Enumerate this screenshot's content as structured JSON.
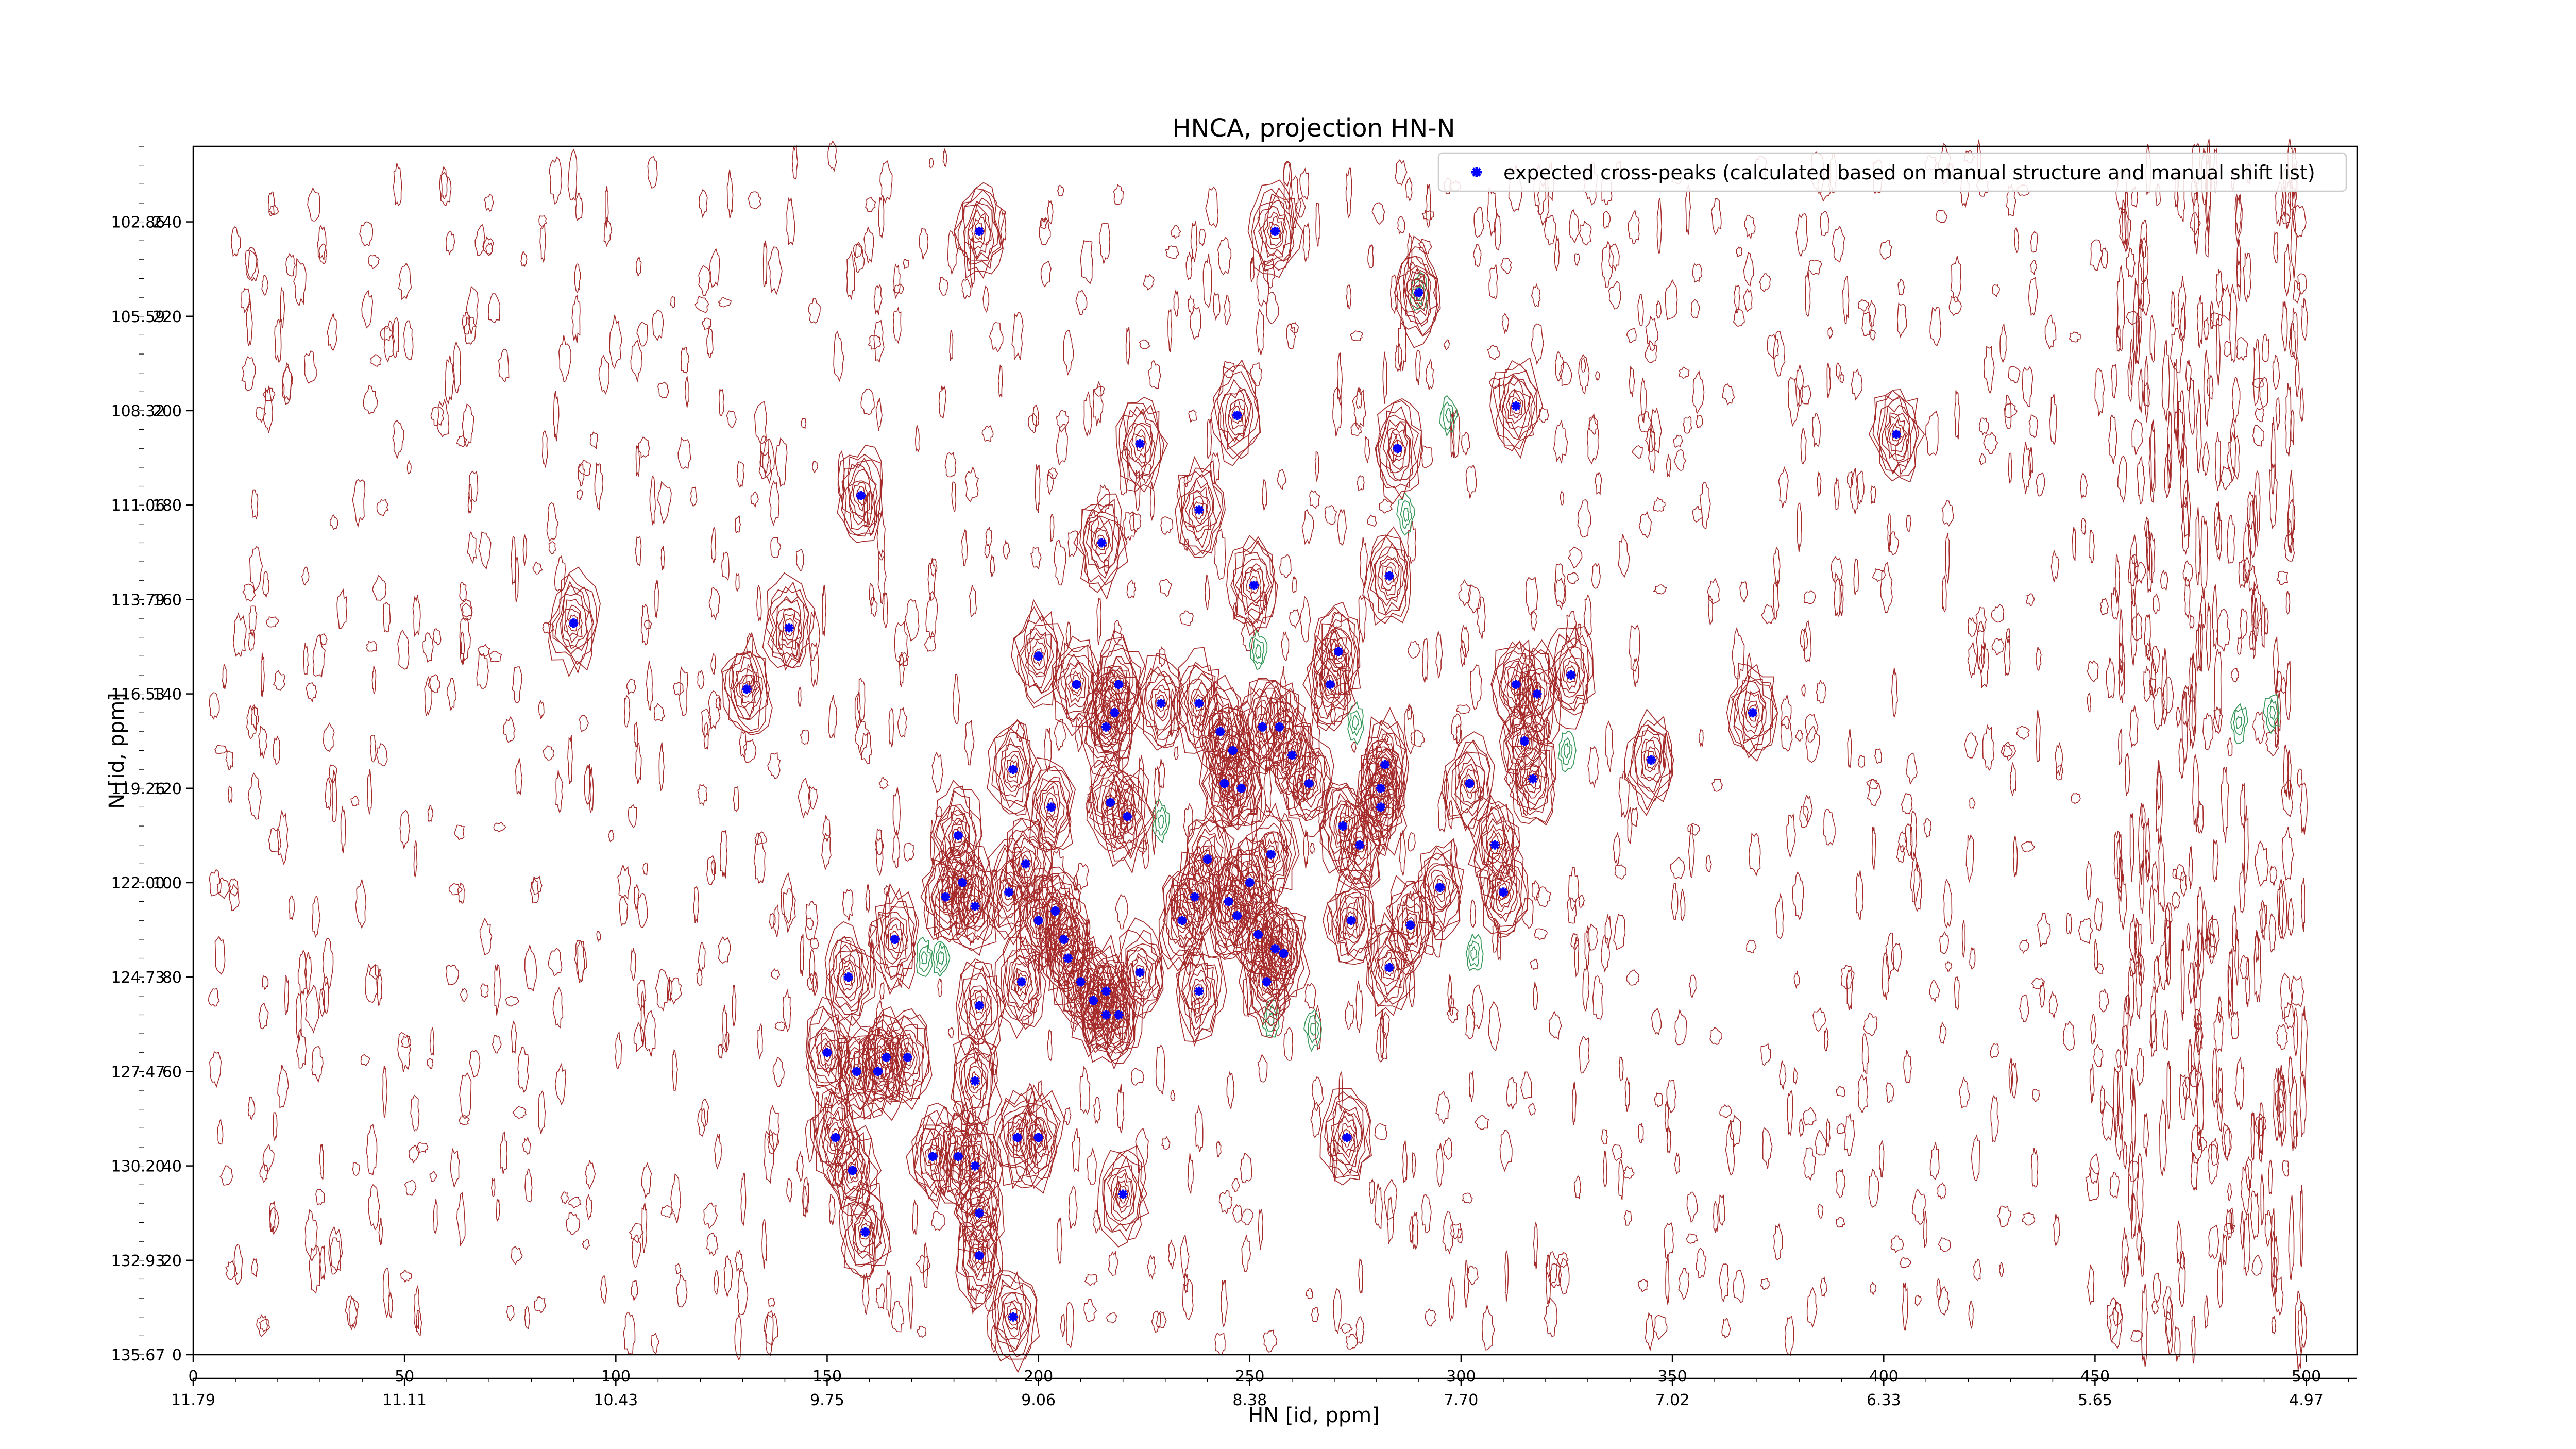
{
  "colors": {
    "positive_contour": "#a52a2a",
    "negative_contour": "#3a9a5b",
    "marker": "#0000ff",
    "axis": "#000000"
  },
  "chart_data": {
    "type": "scatter",
    "title": "HNCA, projection HN-N",
    "xlabel": "HN [id, ppm]",
    "ylabel": "N [id, ppm]",
    "xlim": [
      0,
      512
    ],
    "ylim": [
      0,
      256
    ],
    "grid": false,
    "legend": {
      "position": "top-right",
      "entries": [
        "expected cross-peaks (calculated based on manual structure and manual shift list)"
      ]
    },
    "x_ticks_index": [
      {
        "value": 0,
        "label": "0"
      },
      {
        "value": 50,
        "label": "50"
      },
      {
        "value": 100,
        "label": "100"
      },
      {
        "value": 150,
        "label": "150"
      },
      {
        "value": 200,
        "label": "200"
      },
      {
        "value": 250,
        "label": "250"
      },
      {
        "value": 300,
        "label": "300"
      },
      {
        "value": 350,
        "label": "350"
      },
      {
        "value": 400,
        "label": "400"
      },
      {
        "value": 450,
        "label": "450"
      },
      {
        "value": 500,
        "label": "500"
      }
    ],
    "x_ticks_ppm": [
      {
        "value": 0,
        "label": "11.79"
      },
      {
        "value": 50,
        "label": "11.11"
      },
      {
        "value": 100,
        "label": "10.43"
      },
      {
        "value": 150,
        "label": "9.75"
      },
      {
        "value": 200,
        "label": "9.06"
      },
      {
        "value": 250,
        "label": "8.38"
      },
      {
        "value": 300,
        "label": "7.70"
      },
      {
        "value": 350,
        "label": "7.02"
      },
      {
        "value": 400,
        "label": "6.33"
      },
      {
        "value": 450,
        "label": "5.65"
      },
      {
        "value": 500,
        "label": "4.97"
      }
    ],
    "y_ticks_index": [
      {
        "value": 0,
        "label": "0"
      },
      {
        "value": 20,
        "label": "20"
      },
      {
        "value": 40,
        "label": "40"
      },
      {
        "value": 60,
        "label": "60"
      },
      {
        "value": 80,
        "label": "80"
      },
      {
        "value": 100,
        "label": "100"
      },
      {
        "value": 120,
        "label": "120"
      },
      {
        "value": 140,
        "label": "140"
      },
      {
        "value": 160,
        "label": "160"
      },
      {
        "value": 180,
        "label": "180"
      },
      {
        "value": 200,
        "label": "200"
      },
      {
        "value": 220,
        "label": "220"
      },
      {
        "value": 240,
        "label": "240"
      }
    ],
    "y_ticks_ppm": [
      {
        "value": 0,
        "label": "135.67"
      },
      {
        "value": 20,
        "label": "132.93"
      },
      {
        "value": 40,
        "label": "130.20"
      },
      {
        "value": 60,
        "label": "127.47"
      },
      {
        "value": 80,
        "label": "124.73"
      },
      {
        "value": 100,
        "label": "122.00"
      },
      {
        "value": 120,
        "label": "119.26"
      },
      {
        "value": 140,
        "label": "116.53"
      },
      {
        "value": 160,
        "label": "113.79"
      },
      {
        "value": 180,
        "label": "111.06"
      },
      {
        "value": 200,
        "label": "108.32"
      },
      {
        "value": 220,
        "label": "105.59"
      },
      {
        "value": 240,
        "label": "102.86"
      }
    ],
    "series": [
      {
        "name": "expected cross-peaks (calculated based on manual structure and manual shift list)",
        "points": [
          [
            90,
            155
          ],
          [
            131,
            141
          ],
          [
            141,
            154
          ],
          [
            158,
            182
          ],
          [
            186,
            238
          ],
          [
            256,
            238
          ],
          [
            290,
            225
          ],
          [
            224,
            193
          ],
          [
            247,
            199
          ],
          [
            238,
            179
          ],
          [
            285,
            192
          ],
          [
            313,
            201
          ],
          [
            403,
            195
          ],
          [
            215,
            172
          ],
          [
            251,
            163
          ],
          [
            283,
            165
          ],
          [
            200,
            148
          ],
          [
            209,
            142
          ],
          [
            219,
            142
          ],
          [
            229,
            138
          ],
          [
            238,
            138
          ],
          [
            218,
            136
          ],
          [
            271,
            149
          ],
          [
            269,
            142
          ],
          [
            326,
            144
          ],
          [
            318,
            140
          ],
          [
            313,
            142
          ],
          [
            369,
            136
          ],
          [
            243,
            132
          ],
          [
            246,
            128
          ],
          [
            244,
            121
          ],
          [
            248,
            120
          ],
          [
            253,
            133
          ],
          [
            257,
            133
          ],
          [
            260,
            127
          ],
          [
            264,
            121
          ],
          [
            282,
            125
          ],
          [
            281,
            120
          ],
          [
            216,
            133
          ],
          [
            194,
            124
          ],
          [
            203,
            116
          ],
          [
            315,
            130
          ],
          [
            317,
            122
          ],
          [
            302,
            121
          ],
          [
            345,
            126
          ],
          [
            272,
            112
          ],
          [
            281,
            116
          ],
          [
            217,
            117
          ],
          [
            221,
            114
          ],
          [
            181,
            110
          ],
          [
            276,
            108
          ],
          [
            308,
            108
          ],
          [
            240,
            105
          ],
          [
            255,
            106
          ],
          [
            197,
            104
          ],
          [
            185,
            95
          ],
          [
            193,
            98
          ],
          [
            182,
            100
          ],
          [
            237,
            97
          ],
          [
            250,
            100
          ],
          [
            245,
            96
          ],
          [
            247,
            93
          ],
          [
            234,
            92
          ],
          [
            252,
            89
          ],
          [
            274,
            92
          ],
          [
            288,
            91
          ],
          [
            295,
            99
          ],
          [
            310,
            98
          ],
          [
            166,
            88
          ],
          [
            200,
            92
          ],
          [
            204,
            94
          ],
          [
            206,
            88
          ],
          [
            207,
            84
          ],
          [
            178,
            97
          ],
          [
            196,
            79
          ],
          [
            210,
            79
          ],
          [
            216,
            77
          ],
          [
            224,
            81
          ],
          [
            238,
            77
          ],
          [
            256,
            86
          ],
          [
            258,
            85
          ],
          [
            254,
            79
          ],
          [
            283,
            82
          ],
          [
            155,
            80
          ],
          [
            150,
            64
          ],
          [
            157,
            60
          ],
          [
            162,
            60
          ],
          [
            164,
            63
          ],
          [
            169,
            63
          ],
          [
            186,
            74
          ],
          [
            185,
            58
          ],
          [
            213,
            75
          ],
          [
            216,
            72
          ],
          [
            219,
            72
          ],
          [
            181,
            42
          ],
          [
            185,
            40
          ],
          [
            195,
            46
          ],
          [
            200,
            46
          ],
          [
            152,
            46
          ],
          [
            156,
            39
          ],
          [
            159,
            26
          ],
          [
            175,
            42
          ],
          [
            186,
            30
          ],
          [
            186,
            21
          ],
          [
            194,
            8
          ],
          [
            220,
            34
          ],
          [
            273,
            46
          ]
        ]
      }
    ]
  }
}
